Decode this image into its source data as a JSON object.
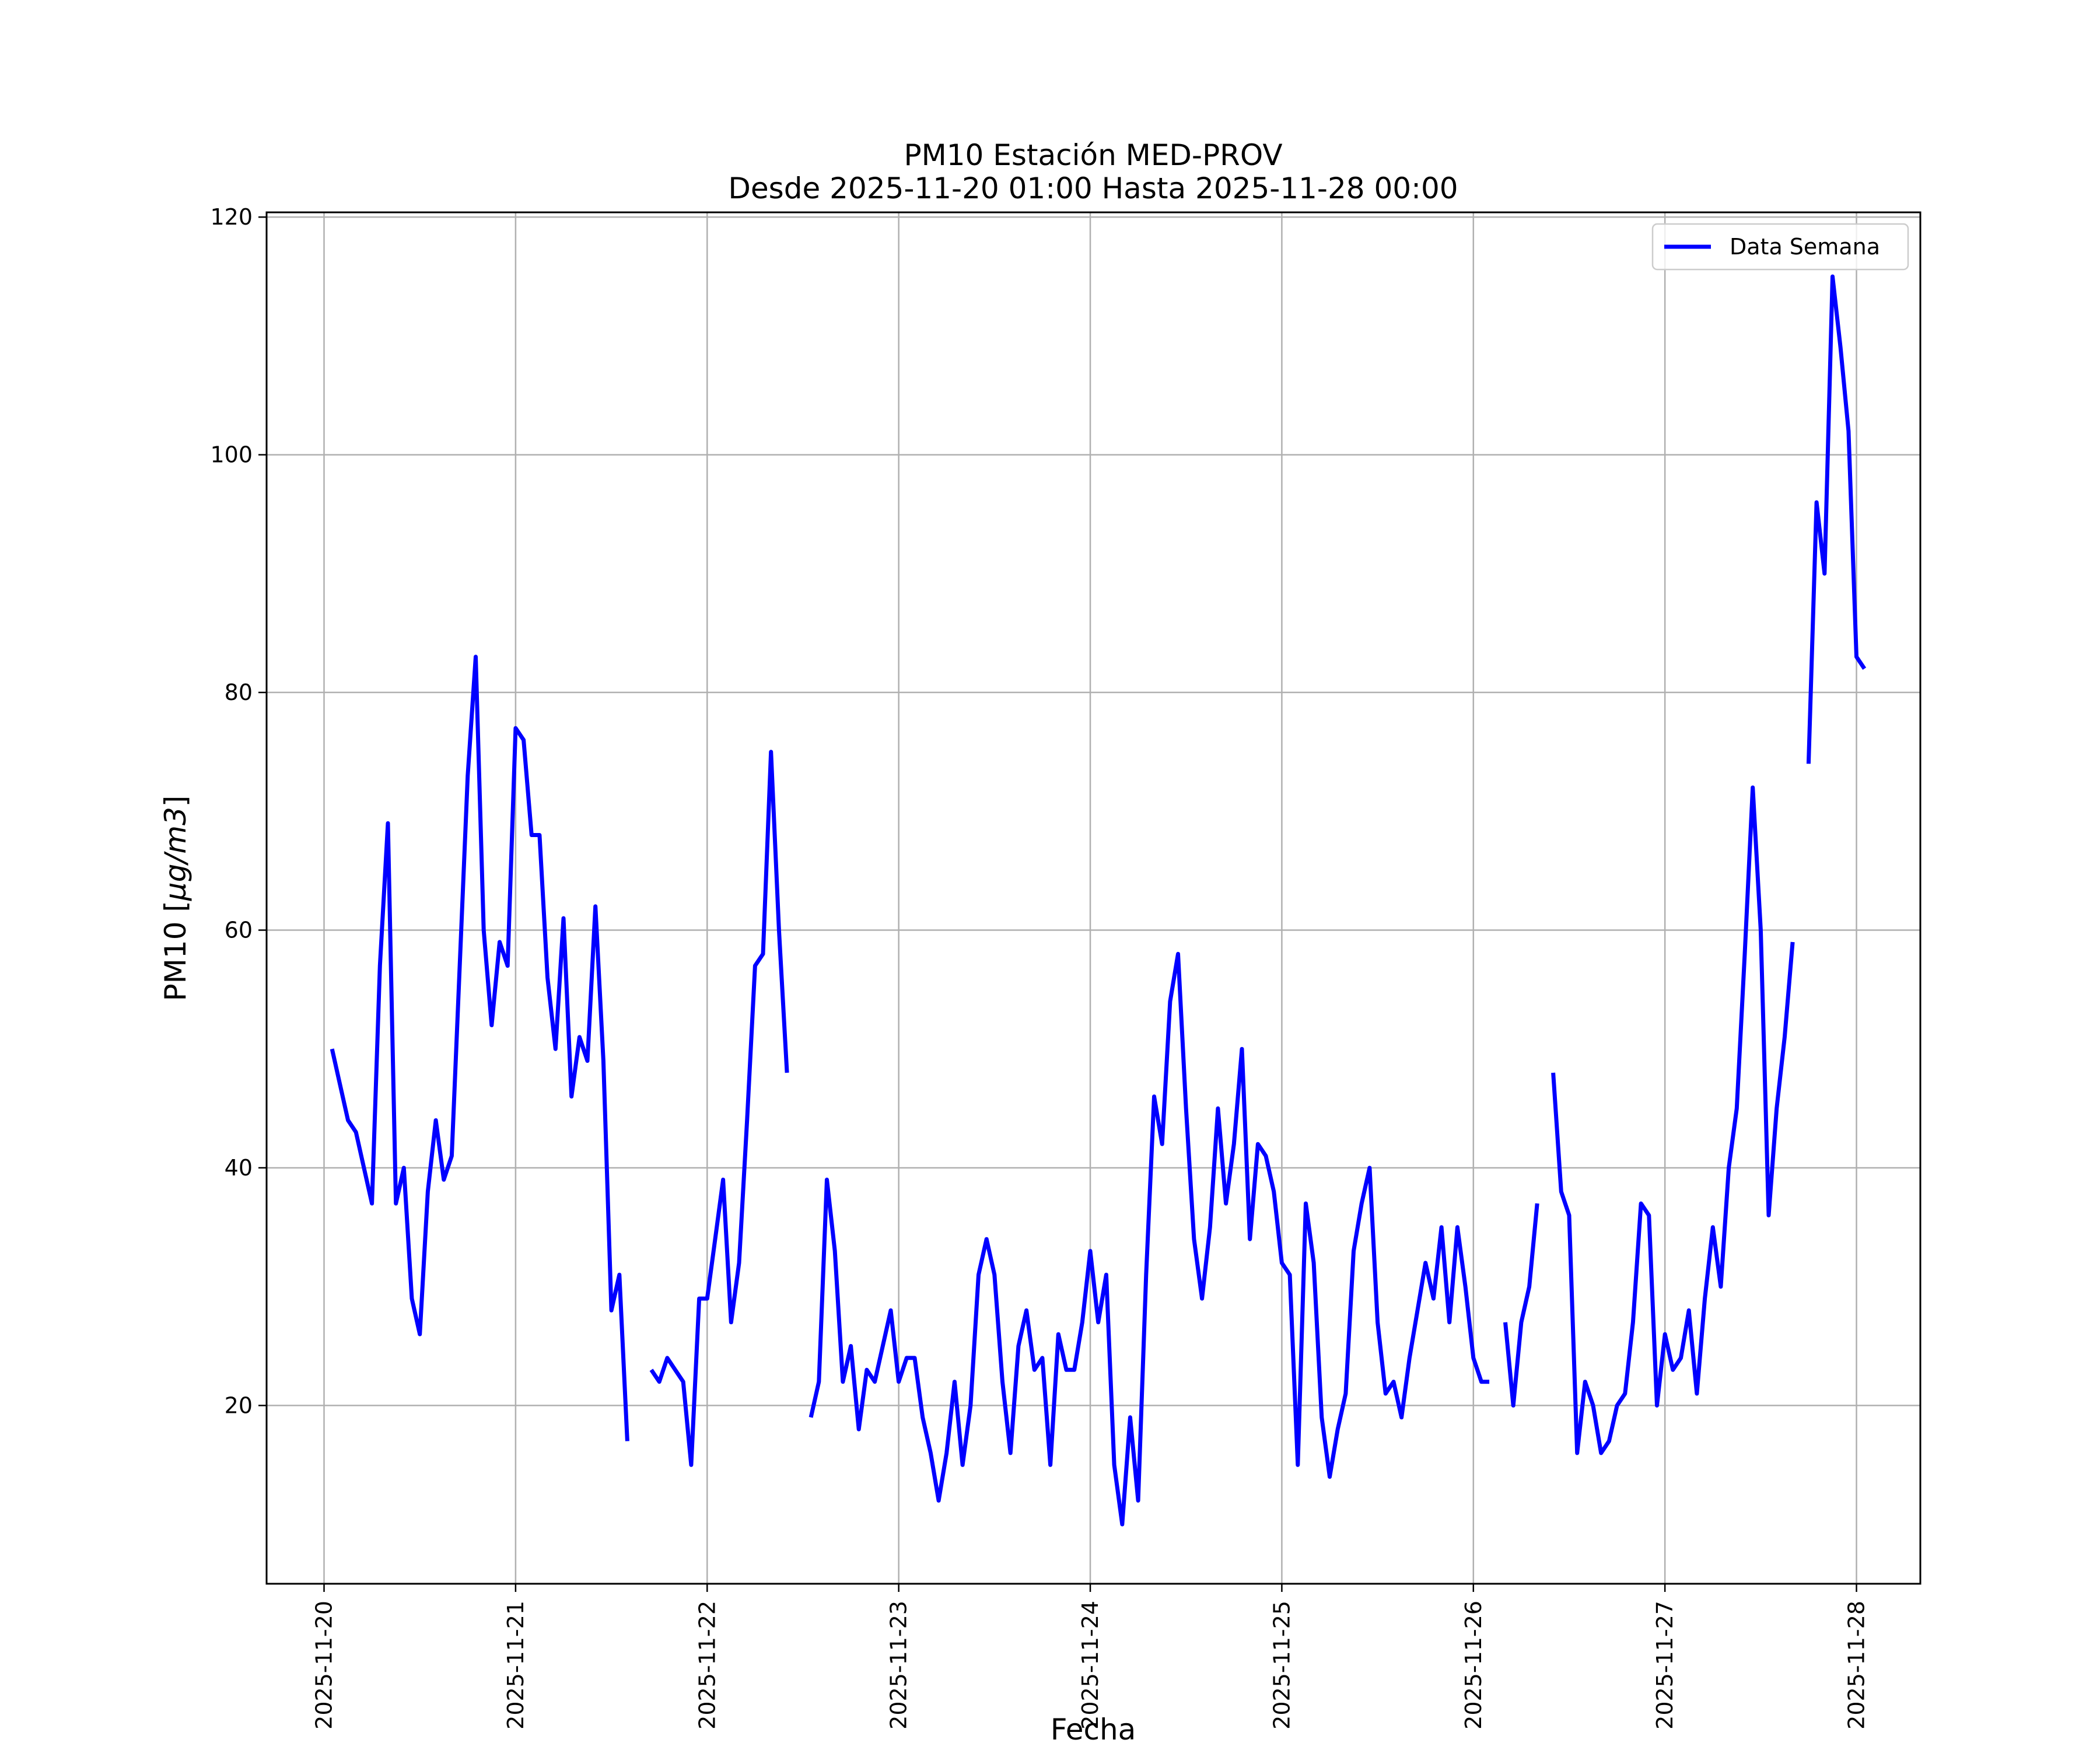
{
  "chart_data": {
    "type": "line",
    "title": "PM10 Estación MED-PROV",
    "subtitle": "Desde 2025-11-20 01:00 Hasta 2025-11-28 00:00",
    "xlabel": "Fecha",
    "ylabel": "PM10 [",
    "ylabel_unit": "μg/m3",
    "ylabel_suffix": "]",
    "xlim": [
      "2025-11-19 16:48",
      "2025-11-28 08:00"
    ],
    "ylim": [
      5,
      120.4
    ],
    "x_ticks": [
      "2025-11-20",
      "2025-11-21",
      "2025-11-22",
      "2025-11-23",
      "2025-11-24",
      "2025-11-25",
      "2025-11-26",
      "2025-11-27",
      "2025-11-28"
    ],
    "y_ticks": [
      20,
      40,
      60,
      80,
      100,
      120
    ],
    "grid": true,
    "legend_position": "top-right",
    "colors": {
      "series": "#0000ff",
      "grid": "#b0b0b0",
      "axes": "#000000"
    },
    "series": [
      {
        "name": "Data Semana",
        "start": "2025-11-20 01:00",
        "interval_hours": 1,
        "values": [
          50,
          47,
          44,
          43,
          40,
          37,
          57,
          69,
          37,
          40,
          29,
          26,
          38,
          44,
          39,
          41,
          57,
          73,
          83,
          60,
          52,
          59,
          57,
          77,
          76,
          68,
          68,
          56,
          50,
          61,
          46,
          51,
          49,
          62,
          49,
          28,
          31,
          17,
          null,
          null,
          23,
          22,
          24,
          23,
          22,
          15,
          29,
          29,
          34,
          39,
          27,
          32,
          44,
          57,
          58,
          75,
          60,
          48,
          null,
          null,
          19,
          22,
          39,
          33,
          22,
          25,
          18,
          23,
          22,
          25,
          28,
          22,
          24,
          24,
          19,
          16,
          12,
          16,
          22,
          15,
          20,
          31,
          34,
          31,
          22,
          16,
          25,
          28,
          23,
          24,
          15,
          26,
          23,
          23,
          27,
          33,
          27,
          31,
          15,
          10,
          19,
          12,
          31,
          46,
          42,
          54,
          58,
          45,
          34,
          29,
          35,
          45,
          37,
          42,
          50,
          34,
          42,
          41,
          38,
          32,
          31,
          15,
          37,
          32,
          19,
          14,
          18,
          21,
          33,
          37,
          40,
          27,
          21,
          22,
          19,
          24,
          28,
          32,
          29,
          35,
          27,
          35,
          30,
          24,
          22,
          22,
          null,
          27,
          20,
          27,
          30,
          37,
          null,
          48,
          38,
          36,
          16,
          22,
          20,
          16,
          17,
          20,
          21,
          27,
          37,
          36,
          20,
          26,
          23,
          24,
          28,
          21,
          29,
          35,
          30,
          40,
          45,
          58,
          72,
          60,
          36,
          45,
          51,
          59,
          null,
          74,
          96,
          90,
          115,
          109,
          102,
          83,
          82
        ]
      }
    ]
  }
}
